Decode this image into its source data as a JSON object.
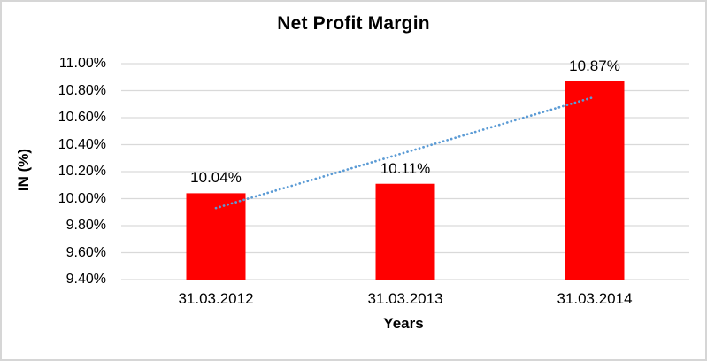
{
  "window": {
    "background": "#FFFFFF",
    "border_color": "#D6D6D6"
  },
  "chart_data": {
    "type": "bar",
    "title": "Net Profit Margin",
    "xlabel": "Years",
    "ylabel": "IN (%)",
    "categories": [
      "31.03.2012",
      "31.03.2013",
      "31.03.2014"
    ],
    "values": [
      10.04,
      10.11,
      10.87
    ],
    "data_labels": [
      "10.04%",
      "10.11%",
      "10.87%"
    ],
    "ylim": [
      9.4,
      11.0
    ],
    "ytick_step": 0.2,
    "ytick_labels": [
      "9.40%",
      "9.60%",
      "9.80%",
      "10.00%",
      "10.20%",
      "10.40%",
      "10.60%",
      "10.80%",
      "11.00%"
    ],
    "grid": true,
    "legend_position": "none",
    "colors": {
      "bar": "#FF0000",
      "trendline": "#5B9BD5",
      "gridline": "#D9D9D9",
      "text": "#000000"
    },
    "trendline": {
      "kind": "linear",
      "style": "dotted",
      "start_value": 9.93,
      "end_value": 10.75
    }
  }
}
